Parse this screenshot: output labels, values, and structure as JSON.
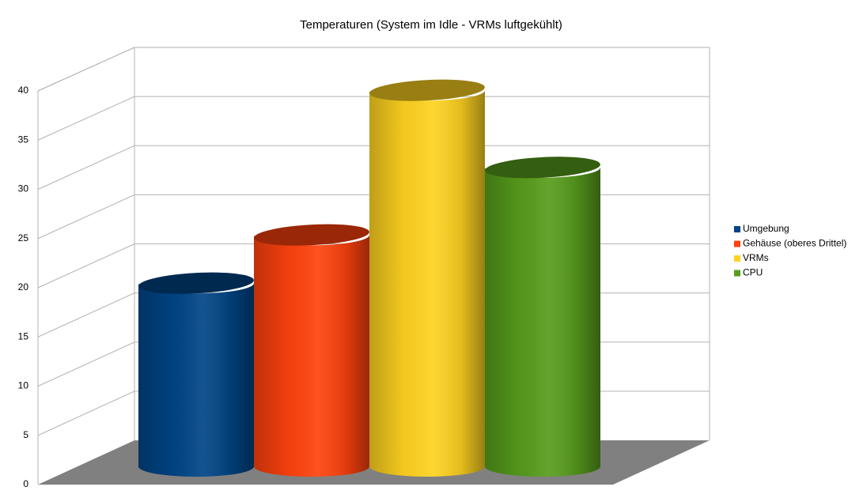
{
  "chart_data": {
    "type": "cylinder",
    "title": "Temperaturen (System im Idle - VRMs luftgekühlt)",
    "series": [
      {
        "name": "Umgebung",
        "color": "#004586",
        "values": [
          19
        ]
      },
      {
        "name": "Gehäuse (oberes Drittel)",
        "color": "#ff420e",
        "values": [
          24
        ]
      },
      {
        "name": "VRMs",
        "color": "#ffd320",
        "values": [
          39
        ]
      },
      {
        "name": "CPU",
        "color": "#579d1c",
        "values": [
          31
        ]
      }
    ],
    "ylim": [
      0,
      40
    ],
    "yticks": [
      0,
      5,
      10,
      15,
      20,
      25,
      30,
      35,
      40
    ],
    "grid": true,
    "legend": "right"
  }
}
